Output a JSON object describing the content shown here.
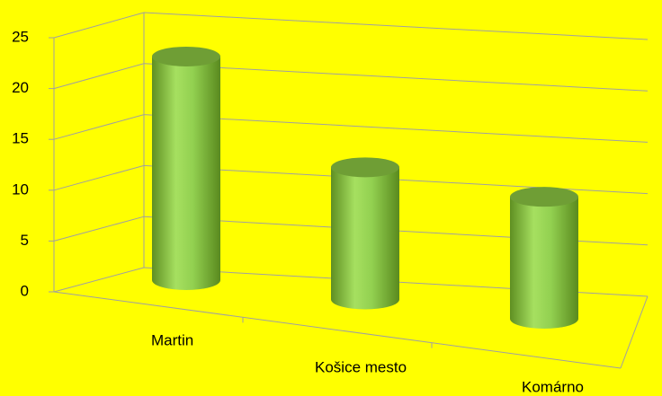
{
  "chart_data": {
    "type": "bar3d",
    "categories": [
      "Martin",
      "Košice mesto",
      "Komárno"
    ],
    "values": [
      22,
      13,
      12
    ],
    "color": "#92d050",
    "ylim": [
      0,
      25
    ],
    "yticks": [
      0,
      5,
      10,
      15,
      20,
      25
    ],
    "grid": true
  }
}
